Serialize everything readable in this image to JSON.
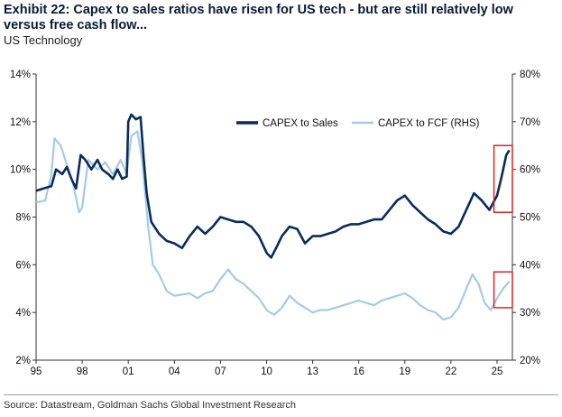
{
  "header": {
    "title": "Exhibit 22: Capex to sales ratios have risen for US tech - but are still relatively low versus free cash flow...",
    "subtitle": "US Technology"
  },
  "footer": {
    "source": "Source: Datastream, Goldman Sachs Global Investment Research"
  },
  "colors": {
    "capex_sales": "#0b2c5a",
    "capex_fcf": "#a6cbe6",
    "highlight": "#d9262b"
  },
  "chart_data": {
    "type": "line",
    "xlim": [
      1995,
      2026
    ],
    "x_ticks": [
      1995,
      1998,
      2001,
      2004,
      2007,
      2010,
      2013,
      2016,
      2019,
      2022,
      2025
    ],
    "x_tick_labels": [
      "95",
      "98",
      "01",
      "04",
      "07",
      "10",
      "13",
      "16",
      "19",
      "22",
      "25"
    ],
    "y_left": {
      "min": 2,
      "max": 14,
      "ticks": [
        2,
        4,
        6,
        8,
        10,
        12,
        14
      ],
      "tick_labels": [
        "2%",
        "4%",
        "6%",
        "8%",
        "10%",
        "12%",
        "14%"
      ]
    },
    "y_right": {
      "min": 20,
      "max": 80,
      "ticks": [
        20,
        30,
        40,
        50,
        60,
        70,
        80
      ],
      "tick_labels": [
        "20%",
        "30%",
        "40%",
        "50%",
        "60%",
        "70%",
        "80%"
      ]
    },
    "grid": false,
    "legend": {
      "position": "top-right"
    },
    "series": [
      {
        "name": "CAPEX to Sales",
        "axis": "left",
        "points": [
          [
            1995.0,
            9.1
          ],
          [
            1995.5,
            9.2
          ],
          [
            1996.0,
            9.3
          ],
          [
            1996.3,
            10.0
          ],
          [
            1996.7,
            9.8
          ],
          [
            1997.0,
            10.1
          ],
          [
            1997.3,
            9.6
          ],
          [
            1997.6,
            9.2
          ],
          [
            1997.9,
            10.6
          ],
          [
            1998.2,
            10.4
          ],
          [
            1998.6,
            10.0
          ],
          [
            1999.0,
            10.4
          ],
          [
            1999.3,
            10.0
          ],
          [
            1999.7,
            9.8
          ],
          [
            2000.0,
            9.6
          ],
          [
            2000.3,
            10.0
          ],
          [
            2000.6,
            9.6
          ],
          [
            2000.9,
            9.7
          ],
          [
            2001.0,
            12.0
          ],
          [
            2001.2,
            12.3
          ],
          [
            2001.5,
            12.1
          ],
          [
            2001.8,
            12.2
          ],
          [
            2002.0,
            10.5
          ],
          [
            2002.2,
            9.0
          ],
          [
            2002.5,
            7.8
          ],
          [
            2003.0,
            7.3
          ],
          [
            2003.5,
            7.0
          ],
          [
            2004.0,
            6.9
          ],
          [
            2004.5,
            6.7
          ],
          [
            2005.0,
            7.2
          ],
          [
            2005.5,
            7.6
          ],
          [
            2006.0,
            7.3
          ],
          [
            2006.5,
            7.6
          ],
          [
            2007.0,
            8.0
          ],
          [
            2007.5,
            7.9
          ],
          [
            2008.0,
            7.8
          ],
          [
            2008.5,
            7.8
          ],
          [
            2009.0,
            7.6
          ],
          [
            2009.5,
            7.2
          ],
          [
            2010.0,
            6.5
          ],
          [
            2010.3,
            6.3
          ],
          [
            2010.7,
            6.8
          ],
          [
            2011.0,
            7.2
          ],
          [
            2011.5,
            7.6
          ],
          [
            2012.0,
            7.5
          ],
          [
            2012.5,
            6.9
          ],
          [
            2013.0,
            7.2
          ],
          [
            2013.5,
            7.2
          ],
          [
            2014.0,
            7.3
          ],
          [
            2014.5,
            7.4
          ],
          [
            2015.0,
            7.6
          ],
          [
            2015.5,
            7.7
          ],
          [
            2016.0,
            7.7
          ],
          [
            2016.5,
            7.8
          ],
          [
            2017.0,
            7.9
          ],
          [
            2017.5,
            7.9
          ],
          [
            2018.0,
            8.3
          ],
          [
            2018.5,
            8.7
          ],
          [
            2019.0,
            8.9
          ],
          [
            2019.5,
            8.5
          ],
          [
            2020.0,
            8.2
          ],
          [
            2020.5,
            7.9
          ],
          [
            2021.0,
            7.7
          ],
          [
            2021.5,
            7.4
          ],
          [
            2022.0,
            7.3
          ],
          [
            2022.5,
            7.6
          ],
          [
            2023.0,
            8.3
          ],
          [
            2023.5,
            9.0
          ],
          [
            2024.0,
            8.7
          ],
          [
            2024.5,
            8.3
          ],
          [
            2025.0,
            8.9
          ],
          [
            2025.3,
            9.7
          ],
          [
            2025.6,
            10.6
          ],
          [
            2025.8,
            10.8
          ]
        ]
      },
      {
        "name": "CAPEX to FCF (RHS)",
        "axis": "right",
        "points": [
          [
            1995.0,
            53.0
          ],
          [
            1995.6,
            53.5
          ],
          [
            1996.0,
            59.0
          ],
          [
            1996.2,
            66.5
          ],
          [
            1996.6,
            65.0
          ],
          [
            1997.0,
            61.0
          ],
          [
            1997.4,
            57.0
          ],
          [
            1997.8,
            51.0
          ],
          [
            1998.0,
            52.0
          ],
          [
            1998.4,
            62.0
          ],
          [
            1999.0,
            60.0
          ],
          [
            1999.5,
            61.5
          ],
          [
            2000.0,
            59.0
          ],
          [
            2000.5,
            62.0
          ],
          [
            2000.9,
            59.0
          ],
          [
            2001.0,
            62.0
          ],
          [
            2001.2,
            67.0
          ],
          [
            2001.6,
            68.0
          ],
          [
            2001.9,
            62.0
          ],
          [
            2002.3,
            48.0
          ],
          [
            2002.6,
            40.0
          ],
          [
            2003.0,
            38.0
          ],
          [
            2003.5,
            34.5
          ],
          [
            2004.0,
            33.5
          ],
          [
            2005.0,
            34.0
          ],
          [
            2005.5,
            33.0
          ],
          [
            2006.0,
            34.0
          ],
          [
            2006.5,
            34.5
          ],
          [
            2007.0,
            37.0
          ],
          [
            2007.5,
            39.0
          ],
          [
            2008.0,
            37.0
          ],
          [
            2008.5,
            36.0
          ],
          [
            2009.0,
            34.5
          ],
          [
            2009.5,
            33.0
          ],
          [
            2010.0,
            30.5
          ],
          [
            2010.5,
            29.5
          ],
          [
            2011.0,
            31.0
          ],
          [
            2011.5,
            33.5
          ],
          [
            2012.0,
            32.0
          ],
          [
            2012.5,
            31.0
          ],
          [
            2013.0,
            30.0
          ],
          [
            2013.5,
            30.5
          ],
          [
            2014.0,
            30.5
          ],
          [
            2014.5,
            31.0
          ],
          [
            2015.0,
            31.5
          ],
          [
            2015.5,
            32.0
          ],
          [
            2016.0,
            32.5
          ],
          [
            2016.5,
            32.0
          ],
          [
            2017.0,
            31.5
          ],
          [
            2017.5,
            32.5
          ],
          [
            2018.0,
            33.0
          ],
          [
            2018.5,
            33.5
          ],
          [
            2019.0,
            34.0
          ],
          [
            2019.5,
            33.0
          ],
          [
            2020.0,
            31.5
          ],
          [
            2020.5,
            30.5
          ],
          [
            2021.0,
            30.0
          ],
          [
            2021.5,
            28.5
          ],
          [
            2022.0,
            29.0
          ],
          [
            2022.5,
            31.0
          ],
          [
            2023.0,
            35.0
          ],
          [
            2023.4,
            38.0
          ],
          [
            2023.8,
            36.0
          ],
          [
            2024.2,
            32.0
          ],
          [
            2024.6,
            30.5
          ],
          [
            2025.0,
            33.0
          ],
          [
            2025.4,
            35.0
          ],
          [
            2025.8,
            36.5
          ]
        ]
      }
    ],
    "highlights": [
      {
        "x": [
          2024.8,
          2026.0
        ],
        "y_axis": "right",
        "y": [
          51.0,
          65.0
        ]
      },
      {
        "x": [
          2024.8,
          2026.0
        ],
        "y_axis": "right",
        "y": [
          31.0,
          38.5
        ]
      }
    ]
  }
}
